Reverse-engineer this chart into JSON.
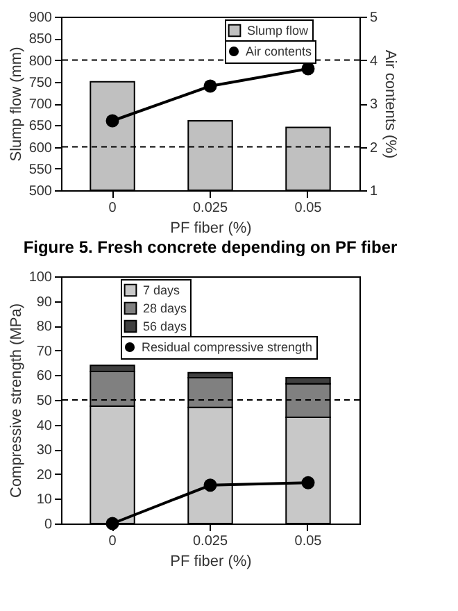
{
  "chart_data": [
    {
      "type": "bar",
      "categories": [
        "0",
        "0.025",
        "0.05"
      ],
      "xlabel": "PF fiber (%)",
      "ylabel": "Slump flow (mm)",
      "y2label": "Air contents (%)",
      "series": [
        {
          "name": "Slump flow",
          "color": "#c0c0c0",
          "values": [
            750,
            660,
            645
          ]
        },
        {
          "name": "Air contents",
          "type": "line",
          "axis": "y2",
          "color": "#000000",
          "values": [
            2.6,
            3.4,
            3.8
          ]
        }
      ],
      "ylim": [
        500,
        900
      ],
      "yticks": [
        500,
        550,
        600,
        650,
        700,
        750,
        800,
        850,
        900
      ],
      "y2lim": [
        1,
        5
      ],
      "y2ticks": [
        1,
        2,
        3,
        4,
        5
      ],
      "ref_lines": [
        {
          "axis": "y",
          "value": 800,
          "line_style": "dashed"
        },
        {
          "axis": "y",
          "value": 600,
          "line_style": "dashed"
        }
      ],
      "marker": "circle",
      "legend": "top right",
      "grid": false,
      "annotations": [
        "Figure 5. Fresh concrete depending on PF fiber"
      ]
    },
    {
      "type": "bar",
      "stacked": true,
      "categories": [
        "0",
        "0.025",
        "0.05"
      ],
      "xlabel": "PF fiber (%)",
      "ylabel": "Compressive strength (MPa)",
      "series": [
        {
          "name": "7 days",
          "color": "#c8c8c8",
          "values": [
            47.5,
            47,
            43
          ]
        },
        {
          "name": "28 days",
          "color": "#808080",
          "values": [
            14,
            12,
            13.5
          ]
        },
        {
          "name": "56 days",
          "color": "#404040",
          "values": [
            2.5,
            2,
            2.5
          ]
        },
        {
          "name": "Residual compressive strength",
          "type": "line",
          "color": "#000000",
          "values": [
            0,
            15.5,
            16.5
          ]
        }
      ],
      "ylim": [
        0,
        100
      ],
      "yticks": [
        0,
        10,
        20,
        30,
        40,
        50,
        60,
        70,
        80,
        90,
        100
      ],
      "ref_lines": [
        {
          "axis": "y",
          "value": 50,
          "line_style": "dashed"
        }
      ],
      "marker": "circle",
      "legend": "top right",
      "grid": false
    }
  ]
}
